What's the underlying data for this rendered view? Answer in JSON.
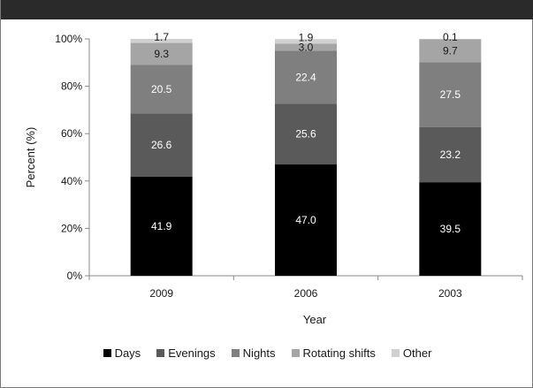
{
  "chart_data": {
    "type": "bar",
    "stacked": true,
    "categories": [
      "2009",
      "2006",
      "2003"
    ],
    "series": [
      {
        "name": "Days",
        "color": "#000000",
        "label_color": "#ffffff",
        "values": [
          41.9,
          47.0,
          39.5
        ],
        "labels": [
          "41.9",
          "47.0",
          "39.5"
        ]
      },
      {
        "name": "Evenings",
        "color": "#5a5a5a",
        "label_color": "#ffffff",
        "values": [
          26.6,
          25.6,
          23.2
        ],
        "labels": [
          "26.6",
          "25.6",
          "23.2"
        ]
      },
      {
        "name": "Nights",
        "color": "#7f7f7f",
        "label_color": "#ffffff",
        "values": [
          20.5,
          22.4,
          27.5
        ],
        "labels": [
          "20.5",
          "22.4",
          "27.5"
        ]
      },
      {
        "name": "Rotating shifts",
        "color": "#a5a5a5",
        "label_color": "#1a1a1a",
        "values": [
          9.3,
          3.0,
          9.7
        ],
        "labels": [
          "9.3",
          "3.0",
          "9.7"
        ]
      },
      {
        "name": "Other",
        "color": "#d0d0d0",
        "label_color": "#1a1a1a",
        "values": [
          1.7,
          1.9,
          0.1
        ],
        "labels": [
          "1.7",
          "1.9",
          "0.1"
        ]
      }
    ],
    "xlabel": "Year",
    "ylabel": "Percent (%)",
    "ylim": [
      0,
      100
    ],
    "yticks": [
      0,
      20,
      40,
      60,
      80,
      100
    ],
    "ytick_labels": [
      "0%",
      "20%",
      "40%",
      "60%",
      "80%",
      "100%"
    ],
    "grid": false,
    "legend_position": "bottom"
  }
}
